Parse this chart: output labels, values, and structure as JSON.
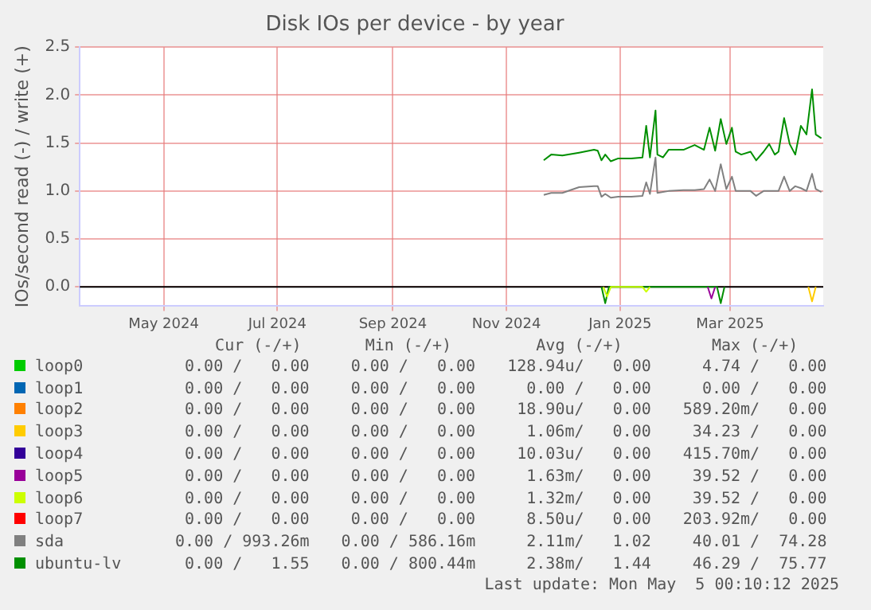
{
  "chart_data": {
    "type": "line",
    "title": "Disk IOs per device - by year",
    "ylabel": "IOs/second read (-) / write (+)",
    "xlim": [
      "2024-04-01",
      "2025-05-05"
    ],
    "xticks": [
      {
        "value": "2024-05-16",
        "label": "May 2024"
      },
      {
        "value": "2024-07-16",
        "label": "Jul 2024"
      },
      {
        "value": "2024-09-16",
        "label": "Sep 2024"
      },
      {
        "value": "2024-11-16",
        "label": "Nov 2024"
      },
      {
        "value": "2025-01-16",
        "label": "Jan 2025"
      },
      {
        "value": "2025-03-16",
        "label": "Mar 2025"
      }
    ],
    "ylim": [
      -0.2,
      2.5
    ],
    "yticks": [
      {
        "value": 0,
        "label": "0.0"
      },
      {
        "value": 0.5,
        "label": "0.5"
      },
      {
        "value": 1,
        "label": "1.0"
      },
      {
        "value": 1.5,
        "label": "1.5"
      },
      {
        "value": 2,
        "label": "2.0"
      },
      {
        "value": 2.5,
        "label": "2.5"
      }
    ],
    "grid": true,
    "legend": "bottom",
    "marker": "none",
    "line_style": "solid",
    "series": [
      {
        "name": "loop0",
        "color": "#00cc00"
      },
      {
        "name": "loop1",
        "color": "#0066b3"
      },
      {
        "name": "loop2",
        "color": "#ff8000"
      },
      {
        "name": "loop3",
        "color": "#ffcc00",
        "x": [
          "2025-04-27",
          "2025-04-29",
          "2025-05-01"
        ],
        "values": [
          0,
          -0.15,
          0
        ]
      },
      {
        "name": "loop4",
        "color": "#330099"
      },
      {
        "name": "loop5",
        "color": "#990099",
        "x": [
          "2025-03-04",
          "2025-03-06",
          "2025-03-08"
        ],
        "values": [
          0,
          -0.12,
          0
        ]
      },
      {
        "name": "loop6",
        "color": "#ccff00",
        "x": [
          "2025-01-07",
          "2025-01-09",
          "2025-01-11",
          "2025-01-28",
          "2025-01-30",
          "2025-02-01"
        ],
        "values": [
          0,
          -0.1,
          0,
          0,
          -0.05,
          0
        ]
      },
      {
        "name": "loop7",
        "color": "#ff0000"
      },
      {
        "name": "sda",
        "color": "#808080",
        "x": [
          "2024-12-06",
          "2024-12-10",
          "2024-12-16",
          "2024-12-25",
          "2025-01-02",
          "2025-01-04",
          "2025-01-06",
          "2025-01-08",
          "2025-01-11",
          "2025-01-15",
          "2025-01-22",
          "2025-01-28",
          "2025-01-30",
          "2025-02-01",
          "2025-02-04",
          "2025-02-05",
          "2025-02-08",
          "2025-02-11",
          "2025-02-19",
          "2025-02-25",
          "2025-03-02",
          "2025-03-05",
          "2025-03-08",
          "2025-03-11",
          "2025-03-14",
          "2025-03-17",
          "2025-03-19",
          "2025-03-22",
          "2025-03-27",
          "2025-03-30",
          "2025-04-03",
          "2025-04-06",
          "2025-04-09",
          "2025-04-11",
          "2025-04-14",
          "2025-04-17",
          "2025-04-20",
          "2025-04-23",
          "2025-04-26",
          "2025-04-29",
          "2025-05-01",
          "2025-05-04"
        ],
        "values": [
          0.96,
          0.98,
          0.98,
          1.04,
          1.05,
          1.05,
          0.94,
          0.97,
          0.93,
          0.94,
          0.94,
          0.95,
          1.09,
          0.97,
          1.35,
          0.98,
          0.99,
          1.0,
          1.01,
          1.01,
          1.02,
          1.12,
          1.0,
          1.28,
          1.02,
          1.15,
          1.0,
          1.0,
          1.0,
          0.95,
          1.0,
          1.0,
          1.0,
          1.0,
          1.15,
          1.0,
          1.05,
          1.03,
          1.0,
          1.18,
          1.02,
          0.99
        ]
      },
      {
        "name": "ubuntu-lv",
        "color": "#008f00",
        "x": [
          "2024-12-06",
          "2024-12-10",
          "2024-12-16",
          "2024-12-25",
          "2025-01-02",
          "2025-01-04",
          "2025-01-06",
          "2025-01-08",
          "2025-01-11",
          "2025-01-15",
          "2025-01-22",
          "2025-01-28",
          "2025-01-30",
          "2025-02-01",
          "2025-02-04",
          "2025-02-05",
          "2025-02-08",
          "2025-02-11",
          "2025-02-19",
          "2025-02-25",
          "2025-03-02",
          "2025-03-05",
          "2025-03-08",
          "2025-03-11",
          "2025-03-14",
          "2025-03-17",
          "2025-03-19",
          "2025-03-22",
          "2025-03-27",
          "2025-03-30",
          "2025-04-03",
          "2025-04-06",
          "2025-04-09",
          "2025-04-11",
          "2025-04-14",
          "2025-04-17",
          "2025-04-20",
          "2025-04-23",
          "2025-04-26",
          "2025-04-29",
          "2025-05-01",
          "2025-05-04"
        ],
        "values": [
          1.32,
          1.38,
          1.37,
          1.4,
          1.43,
          1.42,
          1.32,
          1.38,
          1.31,
          1.34,
          1.34,
          1.35,
          1.68,
          1.35,
          1.84,
          1.38,
          1.35,
          1.43,
          1.43,
          1.48,
          1.43,
          1.66,
          1.42,
          1.75,
          1.49,
          1.66,
          1.41,
          1.38,
          1.41,
          1.32,
          1.41,
          1.49,
          1.38,
          1.41,
          1.76,
          1.49,
          1.38,
          1.68,
          1.59,
          2.06,
          1.59,
          1.55
        ]
      },
      {
        "color": "#008f00",
        "x": [
          "2025-01-06",
          "2025-01-08",
          "2025-01-10",
          "2025-03-09",
          "2025-03-11",
          "2025-03-13"
        ],
        "values": [
          0,
          -0.17,
          0,
          0,
          -0.17,
          0
        ]
      }
    ],
    "annotations": [
      "Cur (-/+)",
      "Min (-/+)",
      "Avg (-/+)",
      "Max (-/+)",
      "0.00 /   0.00",
      "0.00 /   0.00",
      "128.94u/   0.00",
      "4.74 /   0.00",
      "0.00 /   0.00",
      "0.00 /   0.00",
      "0.00 /   0.00",
      "0.00 /   0.00",
      "0.00 /   0.00",
      "0.00 /   0.00",
      "18.90u/   0.00",
      "589.20m/   0.00",
      "0.00 /   0.00",
      "0.00 /   0.00",
      "1.06m/   0.00",
      "34.23 /   0.00",
      "0.00 /   0.00",
      "0.00 /   0.00",
      "10.03u/   0.00",
      "415.70m/   0.00",
      "0.00 /   0.00",
      "0.00 /   0.00",
      "1.63m/   0.00",
      "39.52 /   0.00",
      "0.00 /   0.00",
      "0.00 /   0.00",
      "1.32m/   0.00",
      "39.52 /   0.00",
      "0.00 /   0.00",
      "0.00 /   0.00",
      "8.50u/   0.00",
      "203.92m/   0.00",
      "0.00 / 993.26m",
      "0.00 / 586.16m",
      "2.11m/   1.02",
      "40.01 /  74.28",
      "0.00 /   1.55",
      "0.00 / 800.44m",
      "2.38m/   1.44",
      "46.29 /  75.77",
      "Last update: Mon May  5 00:10:12 2025"
    ]
  }
}
